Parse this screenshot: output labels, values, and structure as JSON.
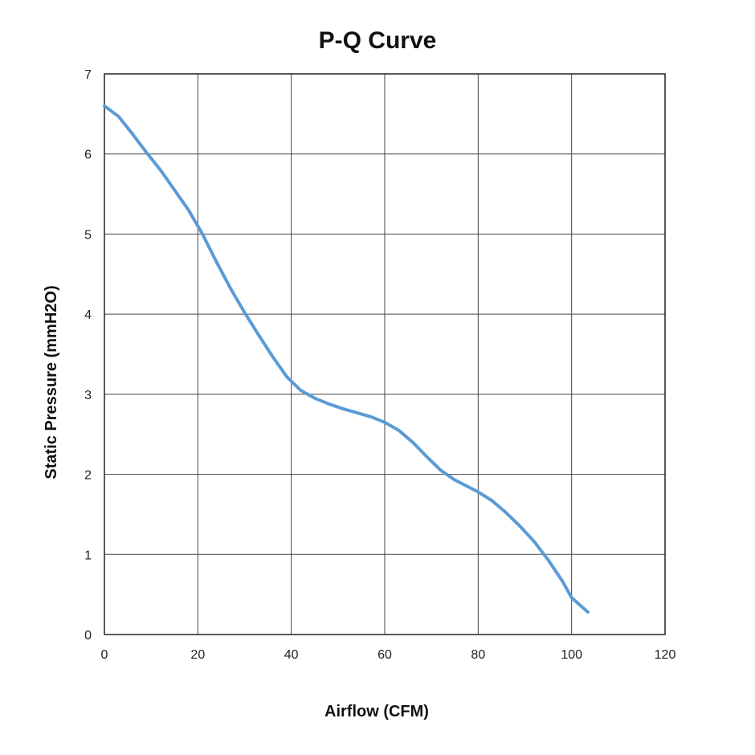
{
  "chart_data": {
    "type": "line",
    "title": "P-Q Curve",
    "xlabel": "Airflow (CFM)",
    "ylabel": "Static Pressure (mmH2O)",
    "xlim": [
      0,
      120
    ],
    "ylim": [
      0,
      7
    ],
    "xticks": [
      0,
      20,
      40,
      60,
      80,
      100,
      120
    ],
    "yticks": [
      0,
      1,
      2,
      3,
      4,
      5,
      6,
      7
    ],
    "grid": true,
    "legend": "none",
    "series": [
      {
        "color": "#5b9bd5",
        "x": [
          0,
          3,
          6,
          9,
          12,
          15,
          18,
          21,
          24,
          27,
          30,
          33,
          36,
          39,
          42,
          45,
          48,
          51,
          54,
          57,
          60,
          63,
          66,
          69,
          72,
          75,
          78,
          80,
          83,
          86,
          89,
          92,
          95,
          98,
          100,
          103.5
        ],
        "y": [
          6.6,
          6.47,
          6.25,
          6.02,
          5.8,
          5.55,
          5.3,
          5.0,
          4.65,
          4.32,
          4.02,
          3.74,
          3.47,
          3.22,
          3.05,
          2.95,
          2.88,
          2.82,
          2.77,
          2.72,
          2.65,
          2.55,
          2.4,
          2.22,
          2.05,
          1.93,
          1.84,
          1.78,
          1.67,
          1.52,
          1.35,
          1.16,
          0.93,
          0.67,
          0.46,
          0.28
        ]
      }
    ]
  }
}
